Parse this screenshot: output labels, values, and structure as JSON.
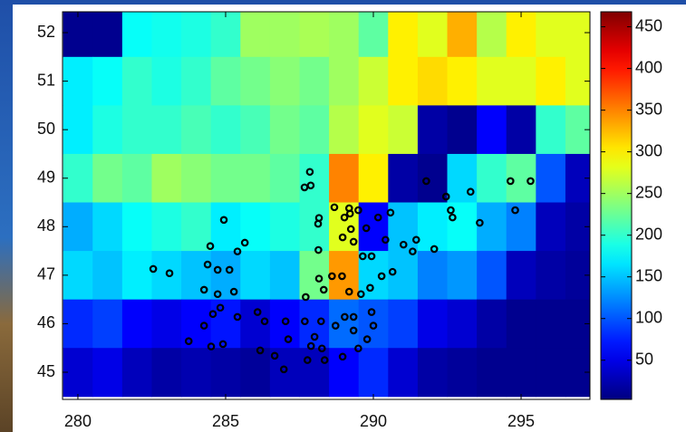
{
  "chart_data": {
    "type": "heatmap",
    "x": [
      280,
      281,
      282,
      283,
      284,
      285,
      286,
      287,
      288,
      289,
      290,
      291,
      292,
      293,
      294,
      295,
      296,
      297
    ],
    "y": [
      52,
      51,
      50,
      49,
      48,
      47,
      46,
      45
    ],
    "z": [
      [
        10,
        10,
        180,
        185,
        190,
        200,
        250,
        250,
        255,
        250,
        220,
        300,
        280,
        330,
        260,
        300,
        280,
        280
      ],
      [
        170,
        180,
        200,
        190,
        200,
        220,
        230,
        240,
        230,
        250,
        270,
        300,
        310,
        300,
        280,
        280,
        300,
        280
      ],
      [
        170,
        190,
        200,
        200,
        210,
        200,
        210,
        230,
        220,
        260,
        280,
        270,
        20,
        10,
        60,
        20,
        200,
        220
      ],
      [
        200,
        230,
        220,
        250,
        240,
        230,
        230,
        220,
        200,
        350,
        300,
        20,
        10,
        160,
        200,
        220,
        100,
        30
      ],
      [
        140,
        160,
        180,
        190,
        200,
        170,
        180,
        190,
        200,
        280,
        60,
        150,
        170,
        180,
        140,
        120,
        30,
        20
      ],
      [
        160,
        150,
        170,
        160,
        150,
        140,
        160,
        150,
        230,
        340,
        160,
        150,
        120,
        130,
        100,
        30,
        20,
        15
      ],
      [
        80,
        90,
        60,
        50,
        60,
        70,
        40,
        60,
        80,
        110,
        100,
        90,
        50,
        40,
        20,
        10,
        10,
        10
      ],
      [
        40,
        50,
        30,
        20,
        25,
        20,
        15,
        30,
        30,
        60,
        80,
        40,
        20,
        15,
        10,
        10,
        10,
        10
      ]
    ],
    "colormap": "jet",
    "xlim": [
      279.48,
      297.33
    ],
    "ylim": [
      44.44,
      52.43
    ],
    "xticks": [
      280,
      285,
      290,
      295
    ],
    "yticks": [
      45,
      46,
      47,
      48,
      49,
      50,
      51,
      52
    ],
    "colorbar": {
      "lim": [
        3,
        468
      ],
      "ticks": [
        50,
        100,
        150,
        200,
        250,
        300,
        350,
        400,
        450
      ]
    },
    "overlay": {
      "type": "scatter",
      "color": "#000000",
      "x": [
        287.85,
        287.88,
        287.67,
        288.16,
        288.13,
        288.68,
        289.18,
        289.21,
        289.49,
        289.24,
        289.76,
        290.16,
        290.58,
        289.02,
        288.96,
        289.33,
        289.64,
        289.94,
        290.41,
        291.02,
        291.33,
        291.45,
        292.06,
        291.79,
        292.46,
        292.68,
        292.62,
        293.29,
        293.6,
        294.64,
        295.32,
        294.8,
        288.14,
        288.6,
        288.94,
        289.18,
        289.58,
        289.89,
        290.65,
        290.28,
        288.16,
        288.32,
        287.71,
        287.68,
        288.23,
        289.03,
        289.33,
        289.94,
        290.0,
        289.79,
        289.49,
        289.33,
        288.72,
        288.01,
        287.89,
        287.77,
        288.26,
        288.35,
        288.96,
        287.03,
        287.12,
        286.66,
        286.97,
        286.08,
        286.32,
        286.17,
        285.4,
        284.82,
        284.73,
        285.28,
        284.73,
        285.13,
        285.4,
        285.65,
        284.94,
        284.48,
        284.39,
        284.27,
        284.57,
        284.27,
        284.51,
        284.91,
        283.75,
        282.55,
        283.1
      ],
      "y": [
        49.13,
        48.85,
        48.81,
        48.18,
        48.06,
        48.4,
        48.38,
        48.27,
        48.34,
        47.95,
        47.97,
        48.19,
        48.29,
        48.19,
        47.78,
        47.69,
        47.39,
        47.39,
        47.73,
        47.63,
        47.49,
        47.73,
        47.54,
        48.94,
        48.62,
        48.19,
        48.34,
        48.72,
        48.08,
        48.94,
        48.94,
        48.34,
        47.52,
        46.98,
        46.98,
        46.66,
        46.61,
        46.74,
        47.07,
        46.98,
        46.93,
        46.7,
        46.55,
        46.05,
        46.05,
        46.14,
        46.14,
        46.24,
        45.96,
        45.68,
        45.49,
        45.86,
        45.96,
        45.73,
        45.54,
        45.25,
        45.49,
        45.25,
        45.32,
        46.05,
        45.68,
        45.34,
        45.06,
        46.24,
        46.05,
        45.45,
        46.14,
        46.33,
        46.61,
        46.66,
        47.11,
        47.11,
        47.49,
        47.67,
        48.14,
        47.6,
        47.22,
        46.7,
        46.2,
        45.96,
        45.53,
        45.58,
        45.64,
        47.13,
        47.04
      ]
    }
  }
}
